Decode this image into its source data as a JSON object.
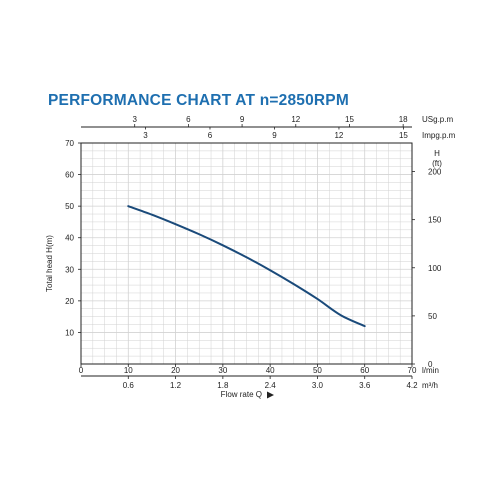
{
  "chart_data": {
    "type": "line",
    "title": "PERFORMANCE CHART AT n=2850RPM",
    "colors": {
      "title": "#1e6fb0",
      "curve": "#1a4a7a",
      "grid": "#d2d2d2",
      "axis": "#222222"
    },
    "grid": true,
    "x_axis": {
      "label": "Flow rate Q",
      "primary_unit": "l/min",
      "primary_range": [
        0,
        70
      ],
      "primary_ticks": [
        "0",
        "10",
        "20",
        "30",
        "40",
        "50",
        "60",
        "70"
      ],
      "secondary_unit": "m³/h",
      "secondary_ticks": [
        "0.6",
        "1.2",
        "1.8",
        "2.4",
        "3.0",
        "3.6",
        "4.2"
      ],
      "secondary_values": [
        0.6,
        1.2,
        1.8,
        2.4,
        3.0,
        3.6,
        4.2
      ]
    },
    "top_axes": [
      {
        "unit": "USg.p.m",
        "ticks": [
          "3",
          "6",
          "9",
          "12",
          "15",
          "18"
        ],
        "values": [
          3,
          6,
          9,
          12,
          15,
          18
        ],
        "lpm_per_unit": 3.785
      },
      {
        "unit": "Impg.p.m",
        "ticks": [
          "3",
          "6",
          "9",
          "12",
          "15"
        ],
        "values": [
          3,
          6,
          9,
          12,
          15
        ],
        "lpm_per_unit": 4.546
      }
    ],
    "y_axis": {
      "label": "Total  head H(m)",
      "range": [
        0,
        70
      ],
      "ticks": [
        "10",
        "20",
        "30",
        "40",
        "50",
        "60",
        "70"
      ]
    },
    "y_axis_right": {
      "label_h": "H",
      "label_unit": "(ft)",
      "range": [
        0,
        229.66
      ],
      "ticks": [
        "0",
        "50",
        "100",
        "150",
        "200"
      ]
    },
    "series": [
      {
        "x": [
          10,
          15,
          20,
          25,
          30,
          35,
          40,
          45,
          50,
          55,
          60
        ],
        "y": [
          50,
          47.3,
          44.3,
          41.1,
          37.6,
          33.8,
          29.7,
          25.3,
          20.6,
          15.4,
          12
        ]
      }
    ]
  }
}
